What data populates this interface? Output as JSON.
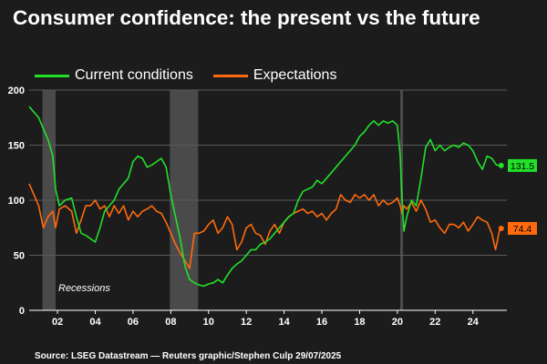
{
  "title": "Consumer confidence: the present vs the future",
  "source": "Source: LSEG Datastream — Reuters graphic/Stephen Culp 29/07/2025",
  "colors": {
    "background": "#1c1c1c",
    "current": "#22e02a",
    "expectations": "#ff6a0d",
    "recession": "#4a4a4a",
    "grid": "#5a5a5a"
  },
  "chart_data": {
    "type": "line",
    "title": "Consumer confidence: the present vs the future",
    "xlabel": "",
    "ylabel": "",
    "xlim": [
      2000.5,
      2025.8
    ],
    "ylim": [
      0,
      200
    ],
    "y_ticks": [
      0,
      50,
      100,
      150,
      200
    ],
    "x_ticks": [
      2002,
      2004,
      2006,
      2008,
      2010,
      2012,
      2014,
      2016,
      2018,
      2020,
      2022,
      2024
    ],
    "x_tick_labels": [
      "02",
      "04",
      "06",
      "08",
      "10",
      "12",
      "14",
      "16",
      "18",
      "20",
      "22",
      "24"
    ],
    "grid": "horizontal",
    "legend_position": "top-left",
    "recessions": [
      [
        2001.2,
        2001.9
      ],
      [
        2007.95,
        2009.45
      ],
      [
        2020.15,
        2020.3
      ]
    ],
    "recession_label": "Recessions",
    "series": [
      {
        "name": "Current conditions",
        "color": "#22e02a",
        "last_label": "131.5",
        "points": [
          [
            2000.5,
            185
          ],
          [
            2000.75,
            180
          ],
          [
            2001.0,
            175
          ],
          [
            2001.25,
            165
          ],
          [
            2001.5,
            155
          ],
          [
            2001.75,
            140
          ],
          [
            2001.9,
            110
          ],
          [
            2002.1,
            95
          ],
          [
            2002.4,
            100
          ],
          [
            2002.75,
            102
          ],
          [
            2003.0,
            85
          ],
          [
            2003.25,
            70
          ],
          [
            2003.5,
            68
          ],
          [
            2003.75,
            65
          ],
          [
            2004.0,
            62
          ],
          [
            2004.25,
            75
          ],
          [
            2004.5,
            90
          ],
          [
            2004.75,
            95
          ],
          [
            2005.0,
            100
          ],
          [
            2005.25,
            110
          ],
          [
            2005.5,
            115
          ],
          [
            2005.75,
            120
          ],
          [
            2006.0,
            135
          ],
          [
            2006.25,
            140
          ],
          [
            2006.5,
            138
          ],
          [
            2006.75,
            130
          ],
          [
            2007.0,
            132
          ],
          [
            2007.25,
            135
          ],
          [
            2007.5,
            138
          ],
          [
            2007.75,
            130
          ],
          [
            2008.0,
            105
          ],
          [
            2008.25,
            85
          ],
          [
            2008.5,
            65
          ],
          [
            2008.75,
            40
          ],
          [
            2009.0,
            28
          ],
          [
            2009.25,
            25
          ],
          [
            2009.5,
            23
          ],
          [
            2009.75,
            22
          ],
          [
            2010.0,
            24
          ],
          [
            2010.25,
            25
          ],
          [
            2010.5,
            28
          ],
          [
            2010.75,
            25
          ],
          [
            2011.0,
            32
          ],
          [
            2011.25,
            38
          ],
          [
            2011.5,
            42
          ],
          [
            2011.75,
            45
          ],
          [
            2012.0,
            50
          ],
          [
            2012.25,
            55
          ],
          [
            2012.5,
            55
          ],
          [
            2012.75,
            60
          ],
          [
            2013.0,
            62
          ],
          [
            2013.25,
            65
          ],
          [
            2013.5,
            70
          ],
          [
            2013.75,
            75
          ],
          [
            2014.0,
            80
          ],
          [
            2014.25,
            85
          ],
          [
            2014.5,
            88
          ],
          [
            2014.75,
            100
          ],
          [
            2015.0,
            108
          ],
          [
            2015.25,
            110
          ],
          [
            2015.5,
            112
          ],
          [
            2015.75,
            118
          ],
          [
            2016.0,
            115
          ],
          [
            2016.25,
            120
          ],
          [
            2016.5,
            125
          ],
          [
            2016.75,
            130
          ],
          [
            2017.0,
            135
          ],
          [
            2017.25,
            140
          ],
          [
            2017.5,
            145
          ],
          [
            2017.75,
            150
          ],
          [
            2018.0,
            158
          ],
          [
            2018.25,
            162
          ],
          [
            2018.5,
            168
          ],
          [
            2018.75,
            172
          ],
          [
            2019.0,
            168
          ],
          [
            2019.25,
            172
          ],
          [
            2019.5,
            170
          ],
          [
            2019.75,
            172
          ],
          [
            2020.0,
            168
          ],
          [
            2020.15,
            140
          ],
          [
            2020.25,
            100
          ],
          [
            2020.35,
            72
          ],
          [
            2020.5,
            85
          ],
          [
            2020.75,
            100
          ],
          [
            2021.0,
            95
          ],
          [
            2021.25,
            120
          ],
          [
            2021.5,
            148
          ],
          [
            2021.75,
            155
          ],
          [
            2022.0,
            145
          ],
          [
            2022.25,
            150
          ],
          [
            2022.5,
            145
          ],
          [
            2022.75,
            148
          ],
          [
            2023.0,
            150
          ],
          [
            2023.25,
            148
          ],
          [
            2023.5,
            152
          ],
          [
            2023.75,
            150
          ],
          [
            2024.0,
            145
          ],
          [
            2024.25,
            135
          ],
          [
            2024.5,
            128
          ],
          [
            2024.75,
            140
          ],
          [
            2025.0,
            138
          ],
          [
            2025.25,
            132
          ],
          [
            2025.5,
            131.5
          ]
        ]
      },
      {
        "name": "Expectations",
        "color": "#ff6a0d",
        "last_label": "74.4",
        "points": [
          [
            2000.5,
            115
          ],
          [
            2000.75,
            105
          ],
          [
            2001.0,
            95
          ],
          [
            2001.25,
            75
          ],
          [
            2001.5,
            85
          ],
          [
            2001.75,
            90
          ],
          [
            2001.9,
            75
          ],
          [
            2002.1,
            92
          ],
          [
            2002.4,
            95
          ],
          [
            2002.75,
            90
          ],
          [
            2003.0,
            70
          ],
          [
            2003.25,
            82
          ],
          [
            2003.5,
            95
          ],
          [
            2003.75,
            95
          ],
          [
            2004.0,
            100
          ],
          [
            2004.25,
            92
          ],
          [
            2004.5,
            95
          ],
          [
            2004.75,
            85
          ],
          [
            2005.0,
            95
          ],
          [
            2005.25,
            88
          ],
          [
            2005.5,
            95
          ],
          [
            2005.75,
            82
          ],
          [
            2006.0,
            90
          ],
          [
            2006.25,
            85
          ],
          [
            2006.5,
            90
          ],
          [
            2006.75,
            92
          ],
          [
            2007.0,
            95
          ],
          [
            2007.25,
            90
          ],
          [
            2007.5,
            88
          ],
          [
            2007.75,
            80
          ],
          [
            2008.0,
            70
          ],
          [
            2008.25,
            60
          ],
          [
            2008.5,
            52
          ],
          [
            2008.75,
            45
          ],
          [
            2009.0,
            38
          ],
          [
            2009.25,
            70
          ],
          [
            2009.5,
            70
          ],
          [
            2009.75,
            72
          ],
          [
            2010.0,
            78
          ],
          [
            2010.25,
            82
          ],
          [
            2010.5,
            70
          ],
          [
            2010.75,
            75
          ],
          [
            2011.0,
            85
          ],
          [
            2011.25,
            78
          ],
          [
            2011.5,
            55
          ],
          [
            2011.75,
            62
          ],
          [
            2012.0,
            75
          ],
          [
            2012.25,
            78
          ],
          [
            2012.5,
            70
          ],
          [
            2012.75,
            68
          ],
          [
            2013.0,
            60
          ],
          [
            2013.25,
            72
          ],
          [
            2013.5,
            78
          ],
          [
            2013.75,
            70
          ],
          [
            2014.0,
            80
          ],
          [
            2014.25,
            85
          ],
          [
            2014.5,
            88
          ],
          [
            2014.75,
            90
          ],
          [
            2015.0,
            92
          ],
          [
            2015.25,
            88
          ],
          [
            2015.5,
            90
          ],
          [
            2015.75,
            85
          ],
          [
            2016.0,
            88
          ],
          [
            2016.25,
            82
          ],
          [
            2016.5,
            88
          ],
          [
            2016.75,
            92
          ],
          [
            2017.0,
            105
          ],
          [
            2017.25,
            100
          ],
          [
            2017.5,
            98
          ],
          [
            2017.75,
            105
          ],
          [
            2018.0,
            102
          ],
          [
            2018.25,
            105
          ],
          [
            2018.5,
            100
          ],
          [
            2018.75,
            105
          ],
          [
            2019.0,
            95
          ],
          [
            2019.25,
            100
          ],
          [
            2019.5,
            96
          ],
          [
            2019.75,
            98
          ],
          [
            2020.0,
            102
          ],
          [
            2020.15,
            95
          ],
          [
            2020.25,
            88
          ],
          [
            2020.35,
            95
          ],
          [
            2020.5,
            92
          ],
          [
            2020.75,
            98
          ],
          [
            2021.0,
            90
          ],
          [
            2021.25,
            100
          ],
          [
            2021.5,
            92
          ],
          [
            2021.75,
            80
          ],
          [
            2022.0,
            82
          ],
          [
            2022.25,
            75
          ],
          [
            2022.5,
            70
          ],
          [
            2022.75,
            78
          ],
          [
            2023.0,
            78
          ],
          [
            2023.25,
            75
          ],
          [
            2023.5,
            80
          ],
          [
            2023.75,
            72
          ],
          [
            2024.0,
            78
          ],
          [
            2024.25,
            85
          ],
          [
            2024.5,
            82
          ],
          [
            2024.75,
            80
          ],
          [
            2025.0,
            70
          ],
          [
            2025.2,
            55
          ],
          [
            2025.4,
            72
          ],
          [
            2025.5,
            74.4
          ]
        ]
      }
    ]
  }
}
